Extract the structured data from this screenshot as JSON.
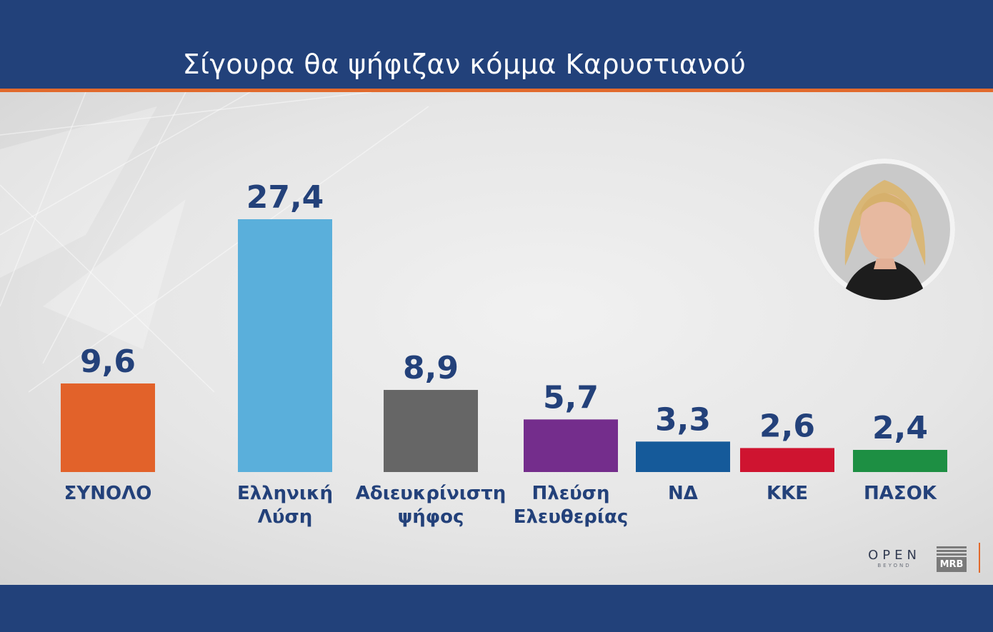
{
  "chart_data": {
    "type": "bar",
    "title": "Σίγουρα θα ψήφιζαν κόμμα Καρυστιανού",
    "categories": [
      [
        "ΣΥΝΟΛΟ"
      ],
      [
        "Ελληνική",
        "Λύση"
      ],
      [
        "Αδιευκρίνιστη",
        "ψήφος"
      ],
      [
        "Πλεύση",
        "Ελευθερίας"
      ],
      [
        "ΝΔ"
      ],
      [
        "ΚΚΕ"
      ],
      [
        "ΠΑΣΟΚ"
      ]
    ],
    "values": [
      9.6,
      27.4,
      8.9,
      5.7,
      3.3,
      2.6,
      2.4
    ],
    "value_labels": [
      "9,6",
      "27,4",
      "8,9",
      "5,7",
      "3,3",
      "2,6",
      "2,4"
    ],
    "colors": [
      "#e2622a",
      "#5aafdb",
      "#666666",
      "#742d8c",
      "#155a9a",
      "#cf1430",
      "#1d8f43"
    ],
    "xlabel": "",
    "ylabel": "",
    "ylim": [
      0,
      27.4
    ],
    "grid": false,
    "legend": "none",
    "label_color": "#23417a"
  },
  "logos": {
    "open_main": "OPEN",
    "open_sub": "BEYOND",
    "mrb": "MRB"
  },
  "portrait_icon": "portrait-photo"
}
